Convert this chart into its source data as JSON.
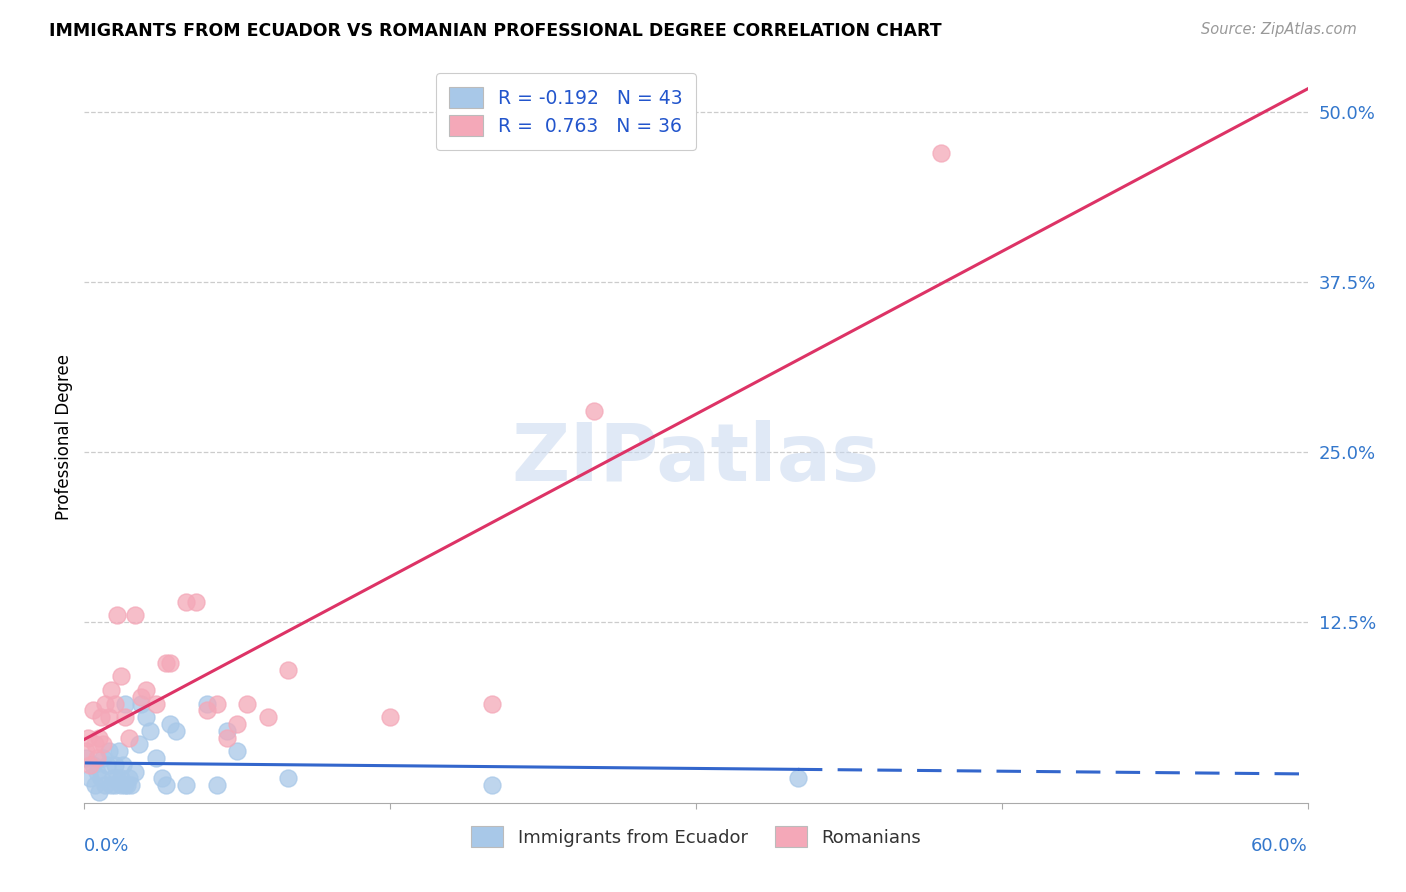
{
  "title": "IMMIGRANTS FROM ECUADOR VS ROMANIAN PROFESSIONAL DEGREE CORRELATION CHART",
  "source": "Source: ZipAtlas.com",
  "ylabel": "Professional Degree",
  "ytick_labels": [
    "",
    "12.5%",
    "25.0%",
    "37.5%",
    "50.0%"
  ],
  "ytick_values": [
    0,
    12.5,
    25.0,
    37.5,
    50.0
  ],
  "xlim": [
    0.0,
    60.0
  ],
  "ylim": [
    -0.8,
    53.0
  ],
  "legend_r_ecuador": "-0.192",
  "legend_n_ecuador": "43",
  "legend_r_romanian": "0.763",
  "legend_n_romanian": "36",
  "ecuador_color": "#a8c8e8",
  "romanian_color": "#f4a8b8",
  "ecuador_line_color": "#3366cc",
  "romanian_line_color": "#dd3366",
  "watermark": "ZIPatlas",
  "ecuador_x": [
    0.1,
    0.3,
    0.4,
    0.5,
    0.6,
    0.7,
    0.8,
    0.9,
    1.0,
    1.1,
    1.2,
    1.3,
    1.4,
    1.5,
    1.5,
    1.6,
    1.7,
    1.8,
    1.8,
    1.9,
    2.0,
    2.0,
    2.1,
    2.2,
    2.3,
    2.5,
    2.7,
    2.8,
    3.0,
    3.2,
    3.5,
    3.8,
    4.0,
    4.2,
    4.5,
    5.0,
    6.0,
    6.5,
    7.0,
    7.5,
    10.0,
    20.0,
    35.0
  ],
  "ecuador_y": [
    2.5,
    1.0,
    2.0,
    0.5,
    1.5,
    0.0,
    1.0,
    2.5,
    0.5,
    2.0,
    3.0,
    0.5,
    1.0,
    2.0,
    0.5,
    1.0,
    3.0,
    0.5,
    1.0,
    2.0,
    0.5,
    6.5,
    0.5,
    1.0,
    0.5,
    1.5,
    3.5,
    6.5,
    5.5,
    4.5,
    2.5,
    1.0,
    0.5,
    5.0,
    4.5,
    0.5,
    6.5,
    0.5,
    4.5,
    3.0,
    1.0,
    0.5,
    1.0
  ],
  "romanian_x": [
    0.1,
    0.2,
    0.3,
    0.4,
    0.5,
    0.6,
    0.7,
    0.8,
    0.9,
    1.0,
    1.2,
    1.3,
    1.5,
    1.6,
    1.8,
    2.0,
    2.2,
    2.5,
    2.8,
    3.0,
    3.5,
    4.0,
    4.2,
    5.0,
    5.5,
    6.0,
    6.5,
    7.0,
    7.5,
    8.0,
    9.0,
    10.0,
    15.0,
    20.0,
    25.0,
    42.0
  ],
  "romanian_y": [
    3.0,
    4.0,
    2.0,
    6.0,
    3.5,
    2.5,
    4.0,
    5.5,
    3.5,
    6.5,
    5.5,
    7.5,
    6.5,
    13.0,
    8.5,
    5.5,
    4.0,
    13.0,
    7.0,
    7.5,
    6.5,
    9.5,
    9.5,
    14.0,
    14.0,
    6.0,
    6.5,
    4.0,
    5.0,
    6.5,
    5.5,
    9.0,
    5.5,
    6.5,
    28.0,
    47.0
  ]
}
